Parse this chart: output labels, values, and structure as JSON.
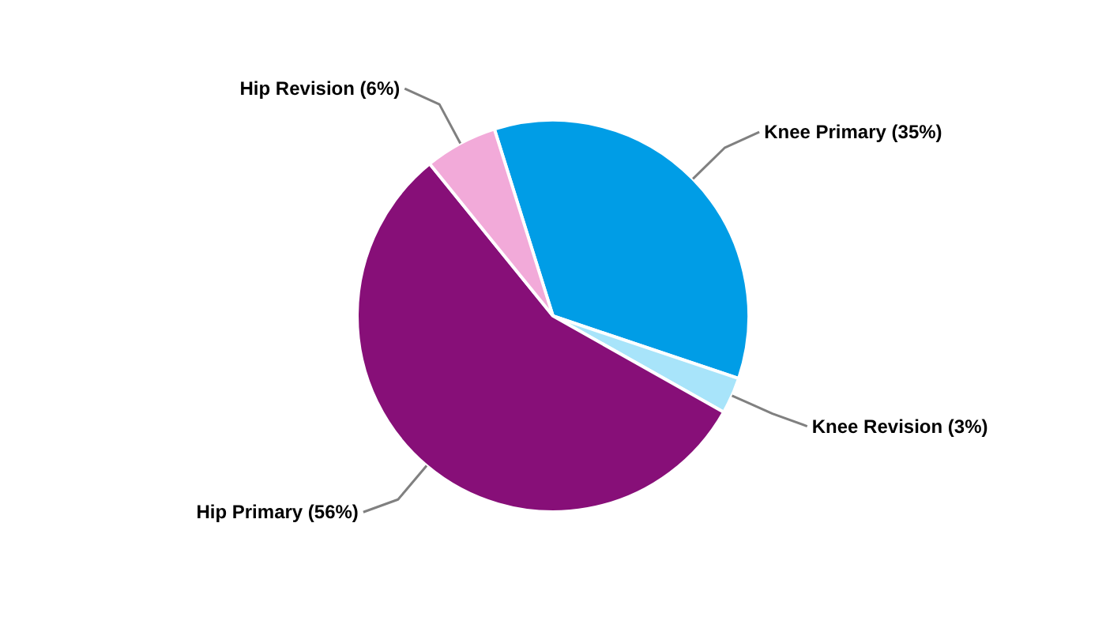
{
  "chart_data": {
    "type": "pie",
    "categories": [
      "Knee Primary (35%)",
      "Knee Revision (3%)",
      "Hip Primary (56%)",
      "Hip Revision (6%)"
    ],
    "values": [
      35,
      3,
      56,
      6
    ],
    "colors": [
      "#009de6",
      "#a8e4fa",
      "#870f78",
      "#f2aad9"
    ]
  }
}
